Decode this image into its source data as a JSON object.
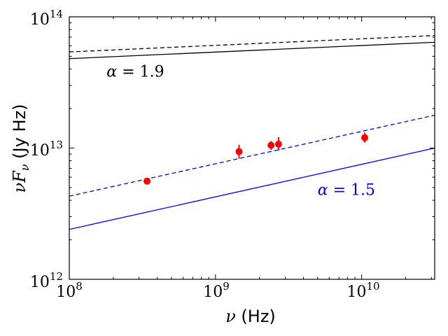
{
  "chart_data": {
    "type": "scatter",
    "title": "",
    "xlabel": {
      "symbol": "ν",
      "unit": "(Hz)"
    },
    "ylabel": {
      "symbol": "νF",
      "sub": "ν",
      "unit": "(Jy  Hz)"
    },
    "xscale": "log",
    "yscale": "log",
    "xlim": [
      100000000.0,
      31600000000.0
    ],
    "ylim": [
      1000000000000.0,
      100000000000000.0
    ],
    "grid": false,
    "x_ticks": [
      {
        "base": "10",
        "exp": "8",
        "value": 100000000.0
      },
      {
        "base": "10",
        "exp": "9",
        "value": 1000000000.0
      },
      {
        "base": "10",
        "exp": "10",
        "value": 10000000000.0
      }
    ],
    "y_ticks": [
      {
        "base": "10",
        "exp": "12",
        "value": 1000000000000.0
      },
      {
        "base": "10",
        "exp": "13",
        "value": 10000000000000.0
      },
      {
        "base": "10",
        "exp": "14",
        "value": 100000000000000.0
      }
    ],
    "series": [
      {
        "name": "α = 1.9 solid",
        "kind": "line",
        "color": "#000000",
        "dash": false,
        "x": [
          100000000.0,
          31600000000.0
        ],
        "y": [
          48000000000000.0,
          64000000000000.0
        ]
      },
      {
        "name": "α = 1.9 dashed",
        "kind": "line",
        "color": "#000000",
        "dash": true,
        "x": [
          100000000.0,
          31600000000.0
        ],
        "y": [
          54000000000000.0,
          72000000000000.0
        ]
      },
      {
        "name": "α = 1.5 solid",
        "kind": "line",
        "color": "#0000ff",
        "dash": false,
        "x": [
          100000000.0,
          31600000000.0
        ],
        "y": [
          2400000000000.0,
          10000000000000.0
        ]
      },
      {
        "name": "α = 1.5 dashed",
        "kind": "line",
        "color": "#0000ff",
        "dash": true,
        "x": [
          100000000.0,
          31600000000.0
        ],
        "y": [
          4300000000000.0,
          17800000000000.0
        ]
      },
      {
        "name": "data",
        "kind": "points",
        "color": "#ff0000",
        "x": [
          340000000.0,
          1450000000.0,
          2400000000.0,
          2700000000.0,
          10500000000.0
        ],
        "y": [
          5600000000000.0,
          9400000000000.0,
          10500000000000.0,
          10700000000000.0,
          12000000000000.0
        ],
        "yerr_low": [
          5300000000000.0,
          8300000000000.0,
          9700000000000.0,
          9600000000000.0,
          11000000000000.0
        ],
        "yerr_high": [
          5900000000000.0,
          10600000000000.0,
          11300000000000.0,
          12100000000000.0,
          13100000000000.0
        ]
      }
    ],
    "annotations": [
      {
        "symbol": "α",
        "text": " = 1.9",
        "color": "#000000",
        "x": 180000000.0,
        "y": 35000000000000.0
      },
      {
        "symbol": "α",
        "text": " = 1.5",
        "color": "#0000ff",
        "x": 5000000000.0,
        "y": 4400000000000.0
      }
    ]
  }
}
